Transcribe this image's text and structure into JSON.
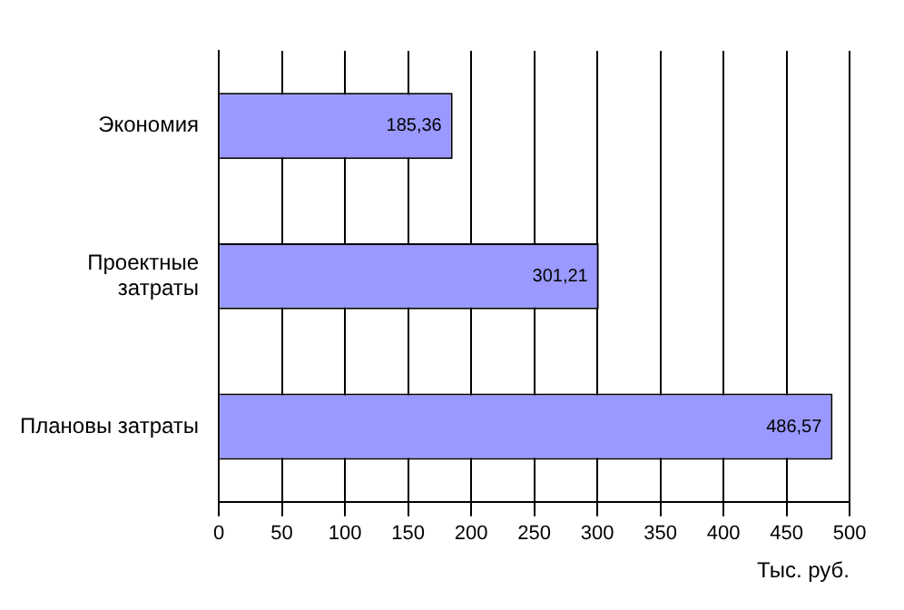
{
  "chart_data": {
    "type": "bar",
    "orientation": "horizontal",
    "xlabel": "Тыс. руб.",
    "categories": [
      "Экономия",
      "Проектные\nзатраты",
      "Плановы затраты"
    ],
    "values": [
      185.36,
      301.21,
      486.57
    ],
    "value_labels": [
      "185,36",
      "301,21",
      "486,57"
    ],
    "color": "#9999ff",
    "xlim": [
      0,
      500
    ],
    "xticks": [
      0,
      50,
      100,
      150,
      200,
      250,
      300,
      350,
      400,
      450,
      500
    ],
    "grid": "x",
    "legend": false
  }
}
